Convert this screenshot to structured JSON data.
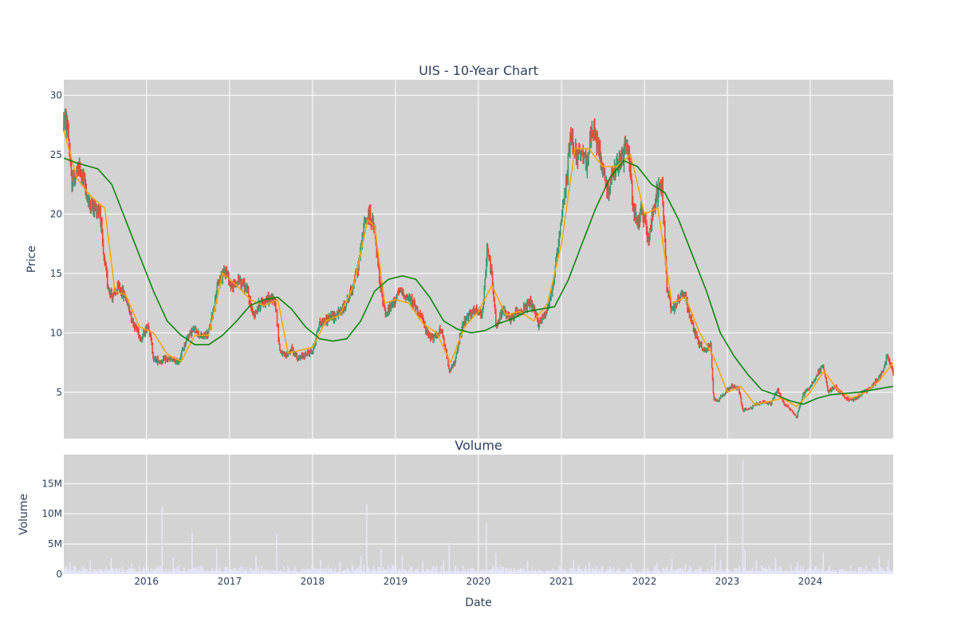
{
  "chart_data": [
    {
      "type": "candlestick",
      "title": "UIS - 10-Year Chart",
      "xlabel": "",
      "ylabel": "Price",
      "xlim": [
        "2015-01-02",
        "2024-12-31"
      ],
      "ylim": [
        1.1,
        31.3
      ],
      "y_ticks": [
        5,
        10,
        15,
        20,
        25,
        30
      ],
      "grid": true,
      "colors": {
        "up": "#3d9970",
        "down": "#ff4136",
        "ma_short": "#ffa500",
        "ma_long": "#008000",
        "plot_bg": "#d3d3d3",
        "grid": "#ffffff"
      },
      "price_path": [
        [
          "2015-01-02",
          28.0
        ],
        [
          "2015-01-20",
          27.3
        ],
        [
          "2015-02-05",
          22.5
        ],
        [
          "2015-02-20",
          23.2
        ],
        [
          "2015-03-10",
          23.8
        ],
        [
          "2015-04-01",
          22.8
        ],
        [
          "2015-04-20",
          21.0
        ],
        [
          "2015-05-20",
          20.5
        ],
        [
          "2015-06-10",
          20.4
        ],
        [
          "2015-06-25",
          16.5
        ],
        [
          "2015-07-15",
          14.0
        ],
        [
          "2015-08-05",
          13.0
        ],
        [
          "2015-09-01",
          13.8
        ],
        [
          "2015-10-01",
          13.0
        ],
        [
          "2015-11-01",
          11.0
        ],
        [
          "2015-12-10",
          9.5
        ],
        [
          "2016-01-10",
          10.8
        ],
        [
          "2016-02-01",
          7.8
        ],
        [
          "2016-03-01",
          7.6
        ],
        [
          "2016-04-01",
          7.8
        ],
        [
          "2016-05-20",
          7.5
        ],
        [
          "2016-07-01",
          9.8
        ],
        [
          "2016-08-01",
          10.3
        ],
        [
          "2016-09-01",
          9.6
        ],
        [
          "2016-10-01",
          10.0
        ],
        [
          "2016-11-10",
          14.0
        ],
        [
          "2016-12-10",
          15.5
        ],
        [
          "2017-01-10",
          13.8
        ],
        [
          "2017-02-15",
          14.5
        ],
        [
          "2017-03-20",
          13.5
        ],
        [
          "2017-04-15",
          11.5
        ],
        [
          "2017-05-15",
          12.5
        ],
        [
          "2017-06-20",
          12.8
        ],
        [
          "2017-07-20",
          12.8
        ],
        [
          "2017-08-10",
          8.5
        ],
        [
          "2017-09-01",
          8.0
        ],
        [
          "2017-10-01",
          8.6
        ],
        [
          "2017-11-01",
          7.8
        ],
        [
          "2017-12-01",
          8.2
        ],
        [
          "2018-01-01",
          8.5
        ],
        [
          "2018-02-01",
          10.8
        ],
        [
          "2018-03-10",
          11.2
        ],
        [
          "2018-04-15",
          11.5
        ],
        [
          "2018-05-15",
          12.0
        ],
        [
          "2018-06-20",
          13.5
        ],
        [
          "2018-07-20",
          15.5
        ],
        [
          "2018-08-20",
          19.5
        ],
        [
          "2018-09-10",
          20.0
        ],
        [
          "2018-10-01",
          18.5
        ],
        [
          "2018-10-25",
          14.0
        ],
        [
          "2018-11-20",
          11.5
        ],
        [
          "2018-12-20",
          12.5
        ],
        [
          "2019-01-20",
          13.5
        ],
        [
          "2019-02-20",
          13.0
        ],
        [
          "2019-03-20",
          12.5
        ],
        [
          "2019-04-20",
          11.5
        ],
        [
          "2019-05-20",
          10.0
        ],
        [
          "2019-06-20",
          9.5
        ],
        [
          "2019-07-20",
          10.3
        ],
        [
          "2019-08-10",
          8.5
        ],
        [
          "2019-08-28",
          6.8
        ],
        [
          "2019-09-20",
          7.5
        ],
        [
          "2019-10-20",
          10.5
        ],
        [
          "2019-11-20",
          11.5
        ],
        [
          "2019-12-20",
          11.8
        ],
        [
          "2020-01-20",
          11.5
        ],
        [
          "2020-02-10",
          17.5
        ],
        [
          "2020-03-01",
          14.5
        ],
        [
          "2020-03-20",
          10.5
        ],
        [
          "2020-04-20",
          12.0
        ],
        [
          "2020-05-20",
          11.0
        ],
        [
          "2020-06-20",
          11.8
        ],
        [
          "2020-07-20",
          12.0
        ],
        [
          "2020-08-20",
          12.5
        ],
        [
          "2020-09-20",
          10.8
        ],
        [
          "2020-10-20",
          11.5
        ],
        [
          "2020-11-20",
          13.5
        ],
        [
          "2020-12-20",
          17.5
        ],
        [
          "2021-01-20",
          22.5
        ],
        [
          "2021-02-10",
          26.5
        ],
        [
          "2021-03-10",
          25.0
        ],
        [
          "2021-04-20",
          24.5
        ],
        [
          "2021-05-20",
          27.0
        ],
        [
          "2021-06-20",
          25.0
        ],
        [
          "2021-07-20",
          22.0
        ],
        [
          "2021-08-20",
          23.5
        ],
        [
          "2021-09-20",
          24.5
        ],
        [
          "2021-10-20",
          26.0
        ],
        [
          "2021-11-10",
          21.0
        ],
        [
          "2021-12-01",
          19.0
        ],
        [
          "2021-12-20",
          20.5
        ],
        [
          "2022-01-20",
          18.0
        ],
        [
          "2022-02-20",
          21.5
        ],
        [
          "2022-03-20",
          22.5
        ],
        [
          "2022-04-10",
          14.0
        ],
        [
          "2022-05-01",
          12.0
        ],
        [
          "2022-05-20",
          12.5
        ],
        [
          "2022-06-20",
          13.5
        ],
        [
          "2022-07-20",
          11.5
        ],
        [
          "2022-08-20",
          9.5
        ],
        [
          "2022-09-20",
          8.5
        ],
        [
          "2022-10-20",
          9.0
        ],
        [
          "2022-11-01",
          4.5
        ],
        [
          "2022-11-20",
          4.3
        ],
        [
          "2022-12-20",
          5.0
        ],
        [
          "2023-01-20",
          5.5
        ],
        [
          "2023-02-20",
          5.3
        ],
        [
          "2023-03-10",
          3.5
        ],
        [
          "2023-04-10",
          3.6
        ],
        [
          "2023-05-10",
          4.0
        ],
        [
          "2023-06-10",
          4.2
        ],
        [
          "2023-07-10",
          4.0
        ],
        [
          "2023-08-10",
          5.2
        ],
        [
          "2023-09-10",
          4.0
        ],
        [
          "2023-10-10",
          3.5
        ],
        [
          "2023-11-01",
          2.9
        ],
        [
          "2023-12-01",
          4.8
        ],
        [
          "2024-01-01",
          5.5
        ],
        [
          "2024-02-01",
          6.5
        ],
        [
          "2024-02-25",
          7.3
        ],
        [
          "2024-03-20",
          5.0
        ],
        [
          "2024-04-20",
          5.5
        ],
        [
          "2024-05-20",
          4.8
        ],
        [
          "2024-06-20",
          4.3
        ],
        [
          "2024-07-20",
          4.5
        ],
        [
          "2024-08-20",
          5.0
        ],
        [
          "2024-09-20",
          5.3
        ],
        [
          "2024-10-20",
          6.0
        ],
        [
          "2024-11-20",
          7.0
        ],
        [
          "2024-12-05",
          8.3
        ],
        [
          "2024-12-31",
          6.5
        ]
      ],
      "series": [
        {
          "name": "",
          "color": "#ffa500",
          "x": [
            "2015-01-02",
            "2015-03-01",
            "2015-05-01",
            "2015-07-01",
            "2015-08-15",
            "2015-10-01",
            "2015-12-01",
            "2016-02-01",
            "2016-04-01",
            "2016-06-01",
            "2016-08-01",
            "2016-10-01",
            "2016-12-01",
            "2017-02-01",
            "2017-04-01",
            "2017-06-01",
            "2017-08-01",
            "2017-09-15",
            "2017-11-01",
            "2018-01-01",
            "2018-03-01",
            "2018-05-01",
            "2018-07-01",
            "2018-09-01",
            "2018-10-01",
            "2018-11-15",
            "2019-01-01",
            "2019-03-01",
            "2019-05-01",
            "2019-07-01",
            "2019-09-01",
            "2019-11-01",
            "2020-01-01",
            "2020-03-01",
            "2020-05-01",
            "2020-07-01",
            "2020-09-01",
            "2020-11-01",
            "2021-01-01",
            "2021-03-01",
            "2021-05-01",
            "2021-07-01",
            "2021-09-01",
            "2021-11-01",
            "2022-01-01",
            "2022-03-01",
            "2022-05-01",
            "2022-07-01",
            "2022-09-01",
            "2022-11-01",
            "2023-01-01",
            "2023-03-01",
            "2023-05-01",
            "2023-07-01",
            "2023-09-01",
            "2023-11-01",
            "2024-01-01",
            "2024-03-01",
            "2024-05-01",
            "2024-07-01",
            "2024-09-01",
            "2024-11-01",
            "2024-12-31"
          ],
          "y": [
            27.0,
            23.0,
            21.5,
            20.5,
            13.5,
            13.2,
            10.5,
            10.0,
            8.2,
            7.6,
            9.8,
            9.8,
            15.0,
            14.0,
            12.8,
            12.3,
            12.8,
            8.3,
            8.5,
            8.8,
            11.0,
            11.5,
            14.0,
            19.5,
            19.0,
            12.5,
            12.8,
            12.5,
            10.8,
            10.0,
            7.5,
            10.5,
            11.8,
            14.0,
            11.5,
            11.8,
            11.0,
            12.5,
            17.5,
            25.5,
            25.5,
            24.0,
            24.0,
            25.0,
            20.0,
            20.5,
            12.5,
            13.0,
            10.0,
            8.0,
            5.0,
            5.5,
            4.0,
            4.2,
            4.5,
            3.8,
            5.0,
            6.8,
            5.2,
            4.5,
            5.0,
            6.0,
            7.5
          ]
        },
        {
          "name": "",
          "color": "#008000",
          "x": [
            "2015-01-02",
            "2015-03-01",
            "2015-06-01",
            "2015-08-01",
            "2015-10-01",
            "2015-12-01",
            "2016-02-01",
            "2016-04-01",
            "2016-06-01",
            "2016-08-01",
            "2016-10-01",
            "2016-12-01",
            "2017-02-01",
            "2017-04-01",
            "2017-06-01",
            "2017-08-01",
            "2017-10-01",
            "2017-12-01",
            "2018-02-01",
            "2018-04-01",
            "2018-06-01",
            "2018-08-01",
            "2018-10-01",
            "2018-12-01",
            "2019-02-01",
            "2019-04-01",
            "2019-06-01",
            "2019-08-01",
            "2019-10-01",
            "2019-12-01",
            "2020-02-01",
            "2020-04-01",
            "2020-06-01",
            "2020-08-01",
            "2020-10-01",
            "2020-12-01",
            "2021-02-01",
            "2021-04-01",
            "2021-06-01",
            "2021-08-01",
            "2021-10-01",
            "2021-12-01",
            "2022-02-01",
            "2022-04-01",
            "2022-06-01",
            "2022-08-01",
            "2022-10-01",
            "2022-12-01",
            "2023-02-01",
            "2023-04-01",
            "2023-06-01",
            "2023-08-01",
            "2023-10-01",
            "2023-12-01",
            "2024-02-01",
            "2024-04-01",
            "2024-06-01",
            "2024-08-01",
            "2024-10-01",
            "2024-12-31"
          ],
          "y": [
            24.7,
            24.3,
            23.8,
            22.5,
            19.5,
            16.5,
            13.5,
            11.0,
            9.8,
            9.0,
            9.0,
            9.8,
            11.0,
            12.3,
            12.8,
            13.0,
            12.0,
            10.5,
            9.5,
            9.3,
            9.5,
            11.0,
            13.5,
            14.5,
            14.8,
            14.5,
            13.0,
            11.0,
            10.3,
            10.0,
            10.2,
            10.8,
            11.2,
            11.8,
            12.0,
            12.2,
            14.5,
            17.5,
            20.5,
            23.0,
            24.5,
            24.0,
            22.5,
            21.8,
            19.5,
            16.5,
            13.5,
            10.0,
            8.0,
            6.5,
            5.2,
            4.8,
            4.3,
            4.0,
            4.5,
            4.8,
            4.9,
            5.0,
            5.2,
            5.5
          ]
        }
      ]
    },
    {
      "type": "bar",
      "title": "Volume",
      "xlabel": "Date",
      "ylabel": "Volume",
      "xlim": [
        "2015-01-02",
        "2024-12-31"
      ],
      "ylim": [
        0,
        19800000
      ],
      "y_ticks": [
        0,
        5000000,
        10000000,
        15000000
      ],
      "y_tick_labels": [
        "0",
        "5M",
        "10M",
        "15M"
      ],
      "x_ticks": [
        "2016-01-01",
        "2017-01-01",
        "2018-01-01",
        "2019-01-01",
        "2020-01-01",
        "2021-01-01",
        "2022-01-01",
        "2023-01-01",
        "2024-01-01"
      ],
      "x_tick_labels": [
        "2016",
        "2017",
        "2018",
        "2019",
        "2020",
        "2021",
        "2022",
        "2023",
        "2024"
      ],
      "color": "#e6e6fa",
      "grid": true,
      "volume_spikes": [
        [
          "2015-01-30",
          2000000
        ],
        [
          "2015-04-29",
          2200000
        ],
        [
          "2015-07-29",
          2600000
        ],
        [
          "2015-10-28",
          1800000
        ],
        [
          "2016-03-10",
          11200000
        ],
        [
          "2016-04-28",
          2800000
        ],
        [
          "2016-07-20",
          6800000
        ],
        [
          "2016-11-05",
          4200000
        ],
        [
          "2017-04-27",
          3000000
        ],
        [
          "2017-07-27",
          6600000
        ],
        [
          "2018-02-05",
          2400000
        ],
        [
          "2018-05-02",
          2100000
        ],
        [
          "2018-08-02",
          3000000
        ],
        [
          "2018-08-28",
          11500000
        ],
        [
          "2018-10-30",
          4200000
        ],
        [
          "2019-01-31",
          3000000
        ],
        [
          "2019-05-01",
          2200000
        ],
        [
          "2019-07-31",
          2400000
        ],
        [
          "2019-08-26",
          5200000
        ],
        [
          "2020-02-05",
          8500000
        ],
        [
          "2020-03-18",
          3500000
        ],
        [
          "2020-08-04",
          2200000
        ],
        [
          "2021-02-23",
          2400000
        ],
        [
          "2021-05-03",
          2000000
        ],
        [
          "2021-11-03",
          1800000
        ],
        [
          "2022-02-25",
          1900000
        ],
        [
          "2022-05-02",
          2600000
        ],
        [
          "2022-11-08",
          4900000
        ],
        [
          "2022-12-01",
          2400000
        ],
        [
          "2023-03-10",
          18900000
        ],
        [
          "2023-03-20",
          4000000
        ],
        [
          "2023-05-08",
          2300000
        ],
        [
          "2023-08-01",
          2600000
        ],
        [
          "2023-11-07",
          2000000
        ],
        [
          "2024-02-27",
          3600000
        ],
        [
          "2024-10-30",
          3000000
        ],
        [
          "2024-12-10",
          2300000
        ]
      ]
    }
  ]
}
